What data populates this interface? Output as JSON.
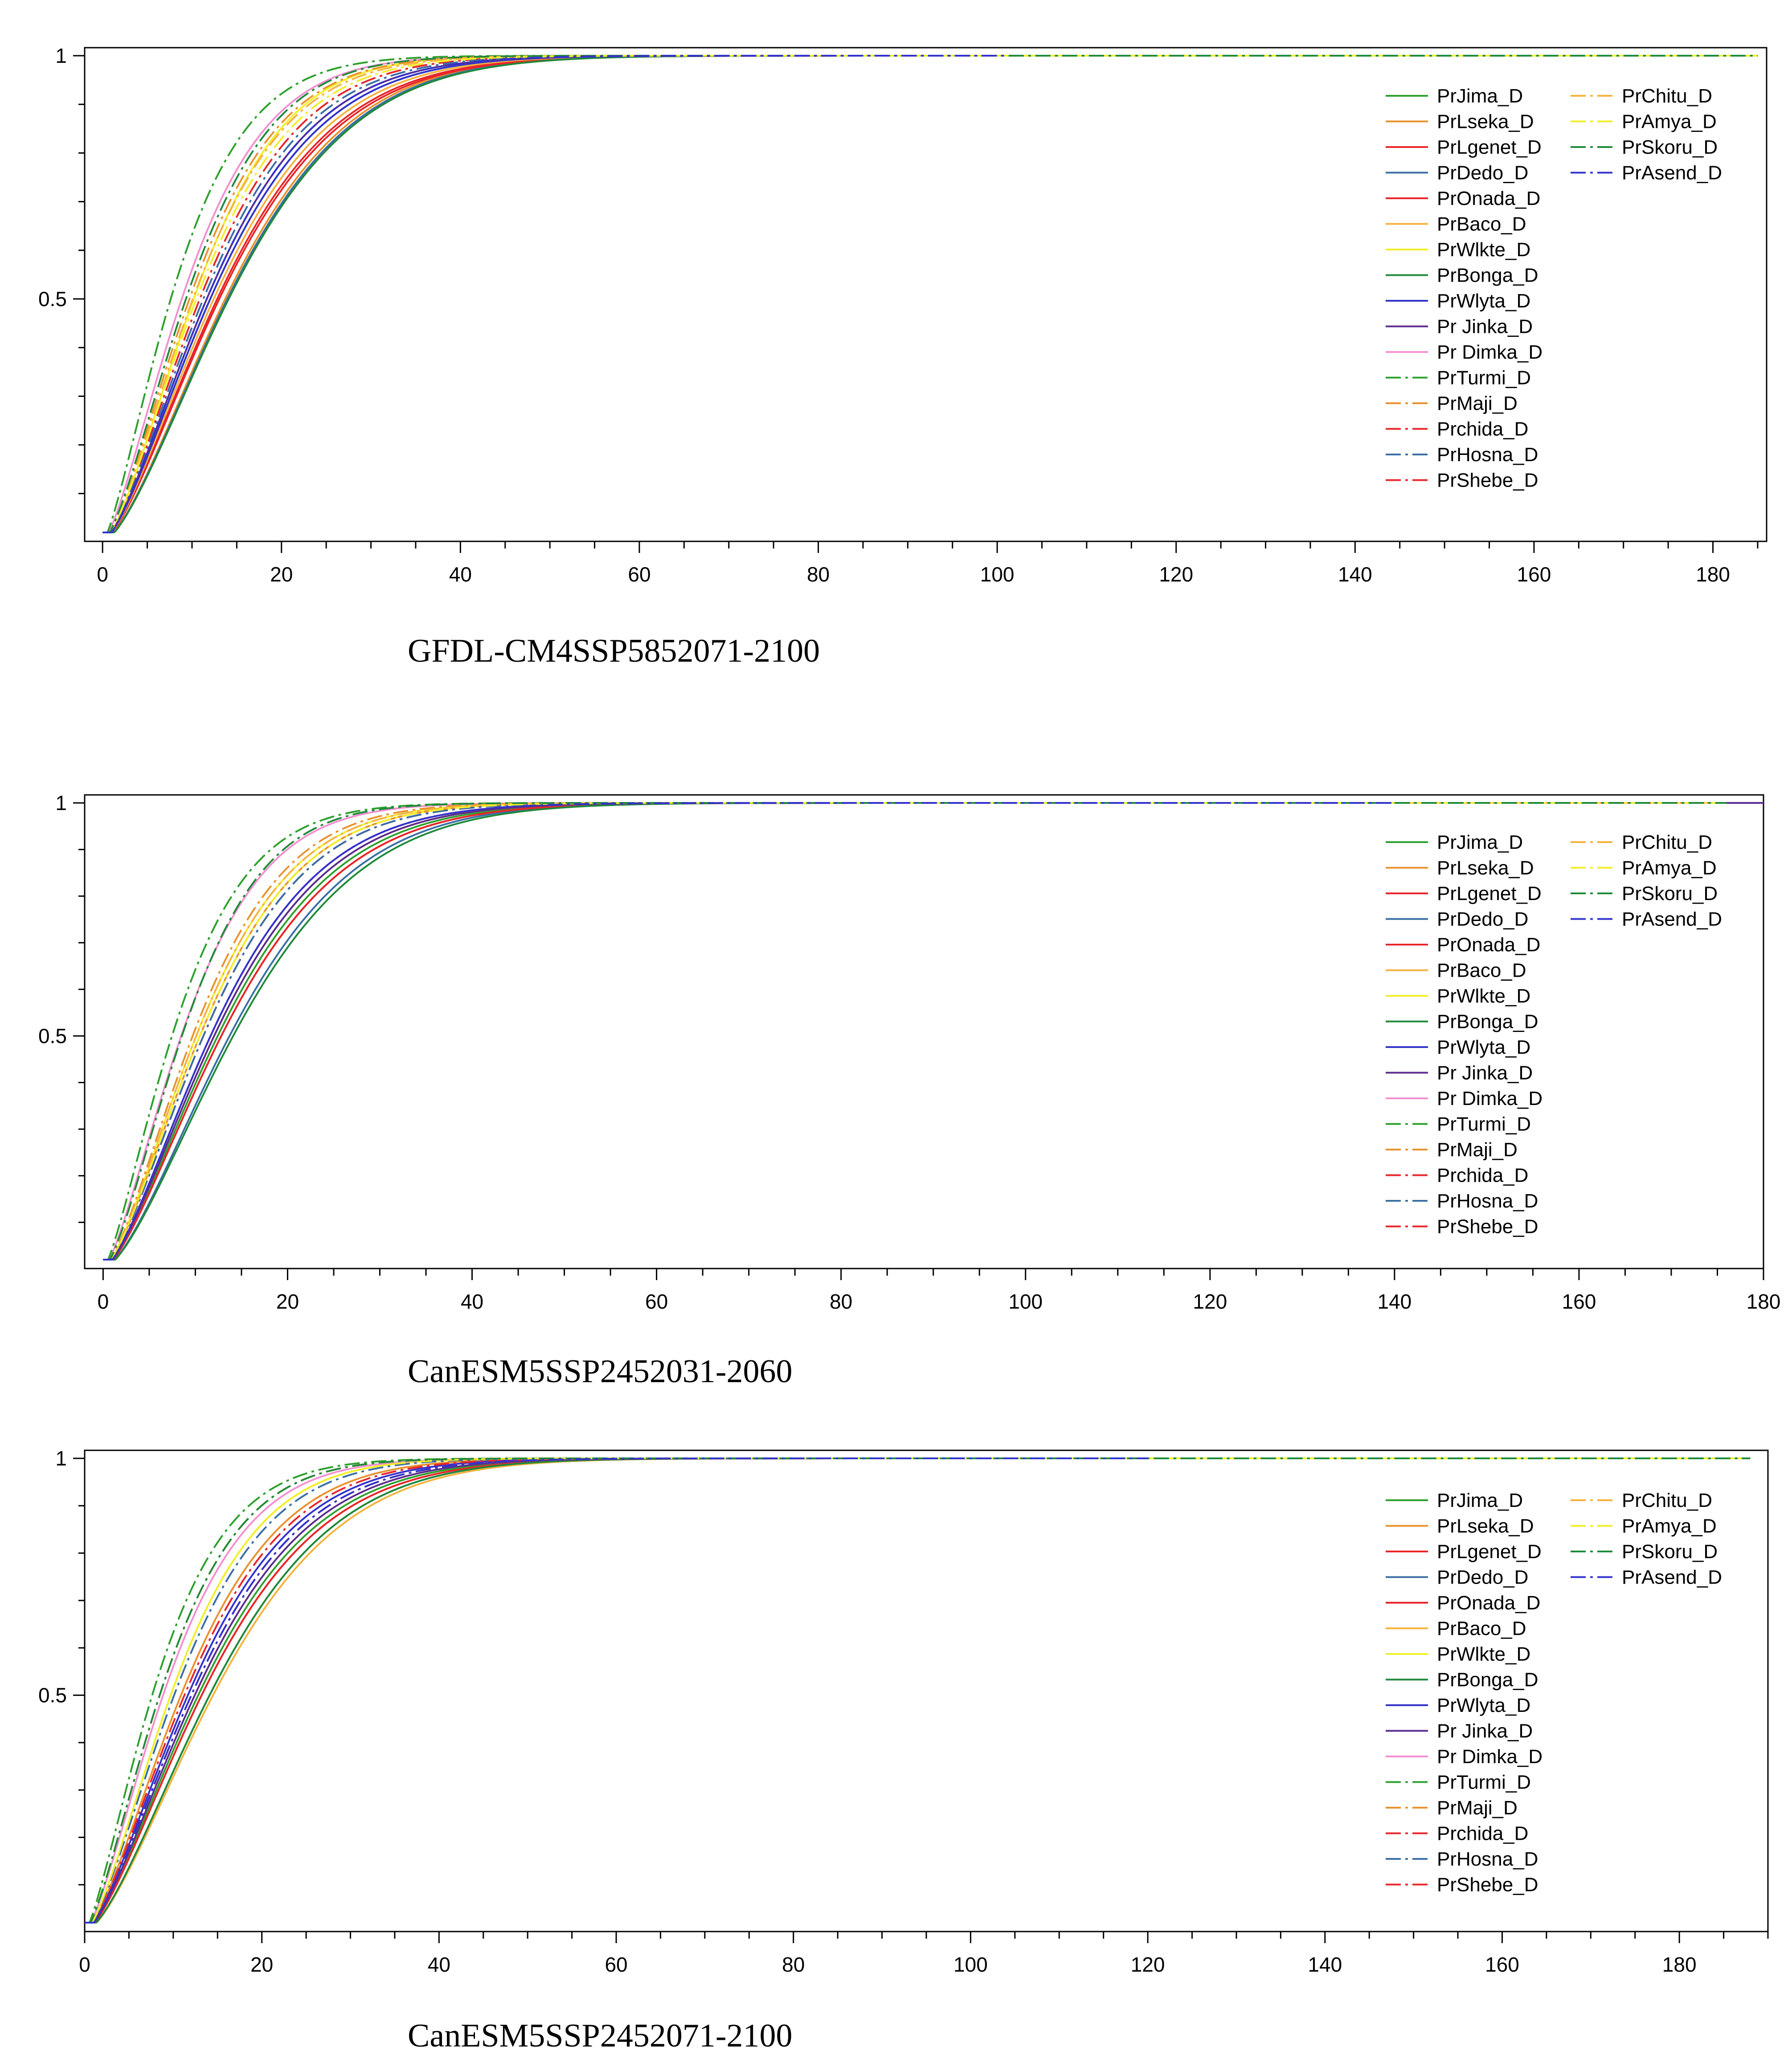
{
  "chart_data": [
    {
      "type": "line",
      "title": "GFDL-CM4SSP5852071-2100",
      "xlabel": "",
      "ylabel": "",
      "xlim": [
        -2,
        186
      ],
      "ylim": [
        0.02,
        1.0
      ],
      "xticks": [
        0,
        20,
        40,
        60,
        80,
        100,
        120,
        140,
        160,
        180
      ],
      "xtick_labels": [
        "0",
        "20",
        "40",
        "60",
        "80",
        "100",
        "120",
        "140",
        "160",
        "180"
      ],
      "yticks": [
        0.5,
        1
      ],
      "ytick_labels": [
        "0.5",
        "1"
      ],
      "grid": false,
      "legend_position": "top-right",
      "series_function": "y = 1 - exp(-(x/scale)^shape), drawn for x from 0 to x_end",
      "series": [
        {
          "name": "PrJima_D",
          "color": "#2ca02c",
          "dash": "solid",
          "scale": 15.5,
          "shape": 1.45,
          "x_end": 185
        },
        {
          "name": "PrLseka_D",
          "color": "#e8922d",
          "dash": "solid",
          "scale": 17.5,
          "shape": 1.5,
          "x_end": 185
        },
        {
          "name": "PrLgenet_D",
          "color": "#e8262a",
          "dash": "solid",
          "scale": 16.5,
          "shape": 1.45,
          "x_end": 185
        },
        {
          "name": "PrDedo_D",
          "color": "#3a6ea5",
          "dash": "solid",
          "scale": 17.8,
          "shape": 1.5,
          "x_end": 185
        },
        {
          "name": "PrOnada_D",
          "color": "#e8262a",
          "dash": "solid",
          "scale": 16.8,
          "shape": 1.45,
          "x_end": 185
        },
        {
          "name": "PrBaco_D",
          "color": "#f5b23d",
          "dash": "solid",
          "scale": 16.0,
          "shape": 1.45,
          "x_end": 185
        },
        {
          "name": "PrWlkte_D",
          "color": "#f2ee2a",
          "dash": "solid",
          "scale": 13.0,
          "shape": 1.5,
          "x_end": 185
        },
        {
          "name": "PrBonga_D",
          "color": "#1f8a3a",
          "dash": "solid",
          "scale": 18.0,
          "shape": 1.5,
          "x_end": 185
        },
        {
          "name": "PrWlyta_D",
          "color": "#3333cc",
          "dash": "solid",
          "scale": 15.5,
          "shape": 1.45,
          "x_end": 185
        },
        {
          "name": "Pr Jinka_D",
          "color": "#5b2c8e",
          "dash": "solid",
          "scale": 15.0,
          "shape": 1.45,
          "x_end": 185
        },
        {
          "name": "Pr Dimka_D",
          "color": "#f48fd0",
          "dash": "solid",
          "scale": 11.5,
          "shape": 1.4,
          "x_end": 185
        },
        {
          "name": "PrTurmi_D",
          "color": "#2ca02c",
          "dash": "dashdot",
          "scale": 10.0,
          "shape": 1.35,
          "x_end": 185
        },
        {
          "name": "PrMaji_D",
          "color": "#e8922d",
          "dash": "dashdot",
          "scale": 12.5,
          "shape": 1.45,
          "x_end": 185
        },
        {
          "name": "Prchida_D",
          "color": "#e8262a",
          "dash": "dashdot",
          "scale": 14.0,
          "shape": 1.45,
          "x_end": 185
        },
        {
          "name": "PrHosna_D",
          "color": "#3a6ea5",
          "dash": "dashdot",
          "scale": 14.5,
          "shape": 1.45,
          "x_end": 185
        },
        {
          "name": "PrShebe_D",
          "color": "#e8262a",
          "dash": "dashdot",
          "scale": 15.0,
          "shape": 1.45,
          "x_end": 185
        },
        {
          "name": "PrChitu_D",
          "color": "#f5b23d",
          "dash": "dashdot",
          "scale": 13.0,
          "shape": 1.45,
          "x_end": 127
        },
        {
          "name": "PrAmya_D",
          "color": "#f2ee2a",
          "dash": "dashdot",
          "scale": 13.5,
          "shape": 1.45,
          "x_end": 185
        },
        {
          "name": "PrSkoru_D",
          "color": "#1f8a3a",
          "dash": "dashdot",
          "scale": 12.0,
          "shape": 1.45,
          "x_end": 185
        },
        {
          "name": "PrAsend_D",
          "color": "#3333cc",
          "dash": "dashdot",
          "scale": 15.0,
          "shape": 1.45,
          "x_end": 101
        }
      ]
    },
    {
      "type": "line",
      "title": "CanESM5SSP2452031-2060",
      "xlabel": "",
      "ylabel": "",
      "xlim": [
        -2,
        180
      ],
      "ylim": [
        0.02,
        1.0
      ],
      "xticks": [
        0,
        20,
        40,
        60,
        80,
        100,
        120,
        140,
        160,
        180
      ],
      "xtick_labels": [
        "0",
        "20",
        "40",
        "60",
        "80",
        "100",
        "120",
        "140",
        "160",
        "180"
      ],
      "yticks": [
        0.5,
        1
      ],
      "ytick_labels": [
        "0.5",
        "1"
      ],
      "grid": false,
      "legend_position": "top-right",
      "series_function": "y = 1 - exp(-(x/scale)^shape), drawn for x from 0 to x_end",
      "series": [
        {
          "name": "PrJima_D",
          "color": "#2ca02c",
          "dash": "solid",
          "scale": 16.0,
          "shape": 1.45,
          "x_end": 176
        },
        {
          "name": "PrLseka_D",
          "color": "#e8922d",
          "dash": "solid",
          "scale": 13.5,
          "shape": 1.45,
          "x_end": 176
        },
        {
          "name": "PrLgenet_D",
          "color": "#e8262a",
          "dash": "solid",
          "scale": 16.5,
          "shape": 1.45,
          "x_end": 176
        },
        {
          "name": "PrDedo_D",
          "color": "#3a6ea5",
          "dash": "solid",
          "scale": 17.5,
          "shape": 1.5,
          "x_end": 176
        },
        {
          "name": "PrOnada_D",
          "color": "#e8262a",
          "dash": "solid",
          "scale": 16.5,
          "shape": 1.45,
          "x_end": 176
        },
        {
          "name": "PrBaco_D",
          "color": "#f5b23d",
          "dash": "solid",
          "scale": 15.5,
          "shape": 1.45,
          "x_end": 176
        },
        {
          "name": "PrWlkte_D",
          "color": "#f2ee2a",
          "dash": "solid",
          "scale": 13.0,
          "shape": 1.45,
          "x_end": 176
        },
        {
          "name": "PrBonga_D",
          "color": "#1f8a3a",
          "dash": "solid",
          "scale": 18.0,
          "shape": 1.5,
          "x_end": 176
        },
        {
          "name": "PrWlyta_D",
          "color": "#3333cc",
          "dash": "solid",
          "scale": 15.0,
          "shape": 1.45,
          "x_end": 176
        },
        {
          "name": "Pr Jinka_D",
          "color": "#5b2c8e",
          "dash": "solid",
          "scale": 15.5,
          "shape": 1.45,
          "x_end": 180
        },
        {
          "name": "Pr Dimka_D",
          "color": "#f48fd0",
          "dash": "solid",
          "scale": 11.0,
          "shape": 1.4,
          "x_end": 176
        },
        {
          "name": "PrTurmi_D",
          "color": "#2ca02c",
          "dash": "dashdot",
          "scale": 9.8,
          "shape": 1.35,
          "x_end": 176
        },
        {
          "name": "PrMaji_D",
          "color": "#e8922d",
          "dash": "dashdot",
          "scale": 12.5,
          "shape": 1.45,
          "x_end": 176
        },
        {
          "name": "Prchida_D",
          "color": "#e8262a",
          "dash": "dashdot",
          "scale": 14.0,
          "shape": 1.45,
          "x_end": 176
        },
        {
          "name": "PrHosna_D",
          "color": "#3a6ea5",
          "dash": "dashdot",
          "scale": 14.0,
          "shape": 1.45,
          "x_end": 176
        },
        {
          "name": "PrShebe_D",
          "color": "#e8262a",
          "dash": "dashdot",
          "scale": 15.0,
          "shape": 1.45,
          "x_end": 176
        },
        {
          "name": "PrChitu_D",
          "color": "#f5b23d",
          "dash": "dashdot",
          "scale": 13.0,
          "shape": 1.45,
          "x_end": 176
        },
        {
          "name": "PrAmya_D",
          "color": "#f2ee2a",
          "dash": "dashdot",
          "scale": 13.5,
          "shape": 1.45,
          "x_end": 176
        },
        {
          "name": "PrSkoru_D",
          "color": "#1f8a3a",
          "dash": "dashdot",
          "scale": 11.0,
          "shape": 1.45,
          "x_end": 176
        },
        {
          "name": "PrAsend_D",
          "color": "#3333cc",
          "dash": "dashdot",
          "scale": 15.0,
          "shape": 1.45,
          "x_end": 140
        }
      ]
    },
    {
      "type": "line",
      "title": "CanESM5SSP2452071-2100",
      "xlabel": "",
      "ylabel": "",
      "xlim": [
        0,
        190
      ],
      "ylim": [
        0.02,
        1.0
      ],
      "xticks": [
        0,
        20,
        40,
        60,
        80,
        100,
        120,
        140,
        160,
        180
      ],
      "xtick_labels": [
        "0",
        "20",
        "40",
        "60",
        "80",
        "100",
        "120",
        "140",
        "160",
        "180"
      ],
      "yticks": [
        0.5,
        1
      ],
      "ytick_labels": [
        "0.5",
        "1"
      ],
      "grid": false,
      "legend_position": "top-right",
      "series_function": "y = 1 - exp(-(x/scale)^shape), drawn for x from 0 to x_end",
      "series": [
        {
          "name": "PrJima_D",
          "color": "#2ca02c",
          "dash": "solid",
          "scale": 16.5,
          "shape": 1.45,
          "x_end": 188
        },
        {
          "name": "PrLseka_D",
          "color": "#e8922d",
          "dash": "solid",
          "scale": 14.0,
          "shape": 1.45,
          "x_end": 188
        },
        {
          "name": "PrLgenet_D",
          "color": "#e8262a",
          "dash": "solid",
          "scale": 17.0,
          "shape": 1.45,
          "x_end": 188
        },
        {
          "name": "PrDedo_D",
          "color": "#3a6ea5",
          "dash": "solid",
          "scale": 18.0,
          "shape": 1.5,
          "x_end": 188
        },
        {
          "name": "PrOnada_D",
          "color": "#e8262a",
          "dash": "solid",
          "scale": 17.0,
          "shape": 1.45,
          "x_end": 188
        },
        {
          "name": "PrBaco_D",
          "color": "#f5b23d",
          "dash": "solid",
          "scale": 18.5,
          "shape": 1.5,
          "x_end": 188
        },
        {
          "name": "PrWlkte_D",
          "color": "#f2ee2a",
          "dash": "solid",
          "scale": 12.5,
          "shape": 1.45,
          "x_end": 188
        },
        {
          "name": "PrBonga_D",
          "color": "#1f8a3a",
          "dash": "solid",
          "scale": 18.0,
          "shape": 1.5,
          "x_end": 188
        },
        {
          "name": "PrWlyta_D",
          "color": "#3333cc",
          "dash": "solid",
          "scale": 15.0,
          "shape": 1.45,
          "x_end": 188
        },
        {
          "name": "Pr Jinka_D",
          "color": "#5b2c8e",
          "dash": "solid",
          "scale": 16.0,
          "shape": 1.45,
          "x_end": 188
        },
        {
          "name": "Pr Dimka_D",
          "color": "#f48fd0",
          "dash": "solid",
          "scale": 11.5,
          "shape": 1.4,
          "x_end": 188
        },
        {
          "name": "PrTurmi_D",
          "color": "#2ca02c",
          "dash": "dashdot",
          "scale": 10.0,
          "shape": 1.35,
          "x_end": 188
        },
        {
          "name": "PrMaji_D",
          "color": "#e8922d",
          "dash": "dashdot",
          "scale": 11.0,
          "shape": 1.4,
          "x_end": 188
        },
        {
          "name": "Prchida_D",
          "color": "#e8262a",
          "dash": "dashdot",
          "scale": 14.5,
          "shape": 1.45,
          "x_end": 188
        },
        {
          "name": "PrHosna_D",
          "color": "#3a6ea5",
          "dash": "dashdot",
          "scale": 13.0,
          "shape": 1.45,
          "x_end": 188
        },
        {
          "name": "PrShebe_D",
          "color": "#e8262a",
          "dash": "dashdot",
          "scale": 15.5,
          "shape": 1.45,
          "x_end": 188
        },
        {
          "name": "PrChitu_D",
          "color": "#f5b23d",
          "dash": "dashdot",
          "scale": 11.0,
          "shape": 1.4,
          "x_end": 155
        },
        {
          "name": "PrAmya_D",
          "color": "#f2ee2a",
          "dash": "dashdot",
          "scale": 12.5,
          "shape": 1.45,
          "x_end": 188
        },
        {
          "name": "PrSkoru_D",
          "color": "#1f8a3a",
          "dash": "dashdot",
          "scale": 11.0,
          "shape": 1.4,
          "x_end": 188
        },
        {
          "name": "PrAsend_D",
          "color": "#3333cc",
          "dash": "dashdot",
          "scale": 15.5,
          "shape": 1.45,
          "x_end": 120
        }
      ]
    }
  ]
}
